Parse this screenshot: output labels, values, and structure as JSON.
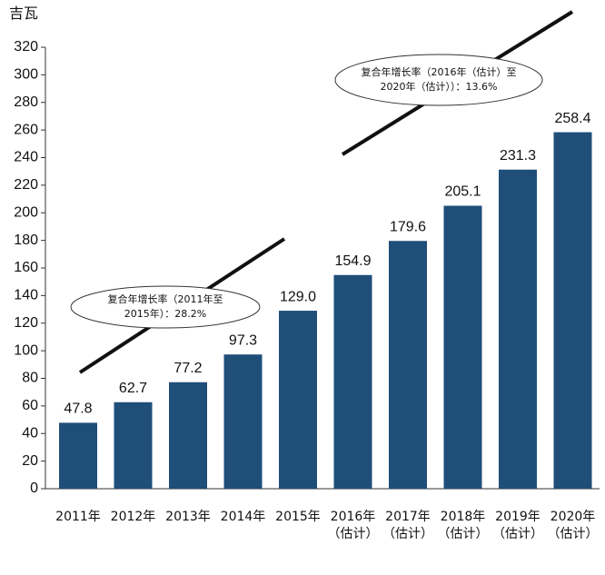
{
  "chart_data": {
    "type": "bar",
    "y_label": "吉瓦",
    "categories": [
      "2011年",
      "2012年",
      "2013年",
      "2014年",
      "2015年",
      "2016年\n（估计）",
      "2017年\n（估计）",
      "2018年\n（估计）",
      "2019年\n（估计）",
      "2020年\n（估计）"
    ],
    "values": [
      47.8,
      62.7,
      77.2,
      97.3,
      129.0,
      154.9,
      179.6,
      205.1,
      231.3,
      258.4
    ],
    "value_labels": [
      "47.8",
      "62.7",
      "77.2",
      "97.3",
      "129.0",
      "154.9",
      "179.6",
      "205.1",
      "231.3",
      "258.4"
    ],
    "color": "#1f4e79",
    "ylim": [
      0,
      320
    ],
    "yticks": [
      0,
      20,
      40,
      60,
      80,
      100,
      120,
      140,
      160,
      180,
      200,
      220,
      240,
      260,
      280,
      300,
      320
    ],
    "annotations": [
      "复合年增长率（2011年至\n2015年）：28.2%",
      "复合年增长率（2016年（估计）至\n2020年（估计））：13.6%"
    ]
  }
}
